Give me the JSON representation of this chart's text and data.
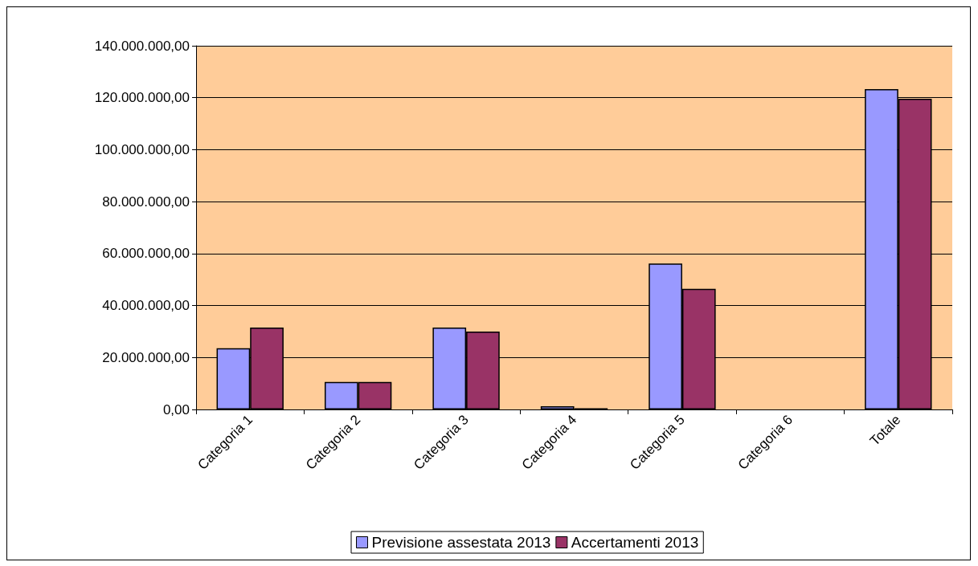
{
  "chart_data": {
    "type": "bar",
    "categories": [
      "Categoria 1",
      "Categoria 2",
      "Categoria 3",
      "Categoria 4",
      "Categoria 5",
      "Categoria 6",
      "Totale"
    ],
    "series": [
      {
        "name": "Previsione assestata 2013",
        "color": "#9999ff",
        "values": [
          23600000,
          10600000,
          31500000,
          1200000,
          56200000,
          0,
          123300000
        ]
      },
      {
        "name": "Accertamenti 2013",
        "color": "#993366",
        "values": [
          31500000,
          10600000,
          30000000,
          500000,
          46400000,
          0,
          119600000
        ]
      }
    ],
    "ylim": [
      0,
      140000000
    ],
    "yticks": [
      {
        "value": 0,
        "label": "0,00"
      },
      {
        "value": 20000000,
        "label": "20.000.000,00"
      },
      {
        "value": 40000000,
        "label": "40.000.000,00"
      },
      {
        "value": 60000000,
        "label": "60.000.000,00"
      },
      {
        "value": 80000000,
        "label": "80.000.000,00"
      },
      {
        "value": 100000000,
        "label": "100.000.000,00"
      },
      {
        "value": 120000000,
        "label": "120.000.000,00"
      },
      {
        "value": 140000000,
        "label": "140.000.000,00"
      }
    ],
    "grid": "y",
    "legend": "bottom"
  }
}
